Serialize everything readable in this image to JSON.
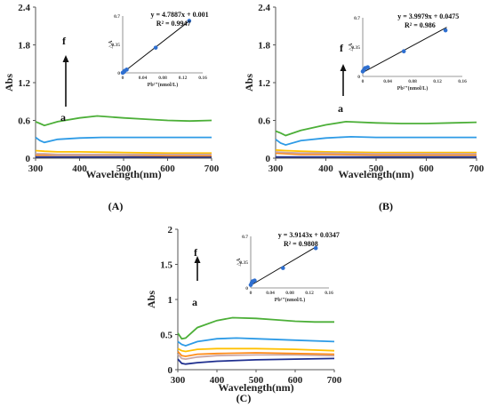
{
  "chart_data": [
    {
      "type": "line",
      "caption": "(A)",
      "xlabel": "Wavelength(nm)",
      "ylabel": "Abs",
      "xlim": [
        300,
        700
      ],
      "ylim": [
        0,
        2.4
      ],
      "xticks": [
        "300",
        "400",
        "500",
        "600",
        "700"
      ],
      "yticks": [
        "0",
        "0.6",
        "1.2",
        "1.8",
        "2.4"
      ],
      "arrow": {
        "from": "a",
        "to": "f"
      },
      "series": [
        {
          "color": "#1f2f8f",
          "x": [
            300,
            320,
            350,
            400,
            500,
            600,
            700
          ],
          "y": [
            0.02,
            0.02,
            0.02,
            0.02,
            0.02,
            0.02,
            0.02
          ]
        },
        {
          "color": "#ff8c1a",
          "x": [
            300,
            320,
            350,
            400,
            500,
            600,
            700
          ],
          "y": [
            0.05,
            0.05,
            0.05,
            0.05,
            0.05,
            0.04,
            0.04
          ]
        },
        {
          "color": "#ffc000",
          "x": [
            300,
            320,
            350,
            400,
            500,
            600,
            700
          ],
          "y": [
            0.12,
            0.11,
            0.1,
            0.1,
            0.09,
            0.08,
            0.08
          ]
        },
        {
          "color": "#c9a7a7",
          "x": [
            300,
            320,
            350,
            400,
            500,
            600,
            700
          ],
          "y": [
            0.07,
            0.07,
            0.06,
            0.06,
            0.06,
            0.06,
            0.06
          ]
        },
        {
          "color": "#2e9be6",
          "x": [
            300,
            310,
            320,
            350,
            400,
            450,
            500,
            600,
            700
          ],
          "y": [
            0.33,
            0.28,
            0.25,
            0.3,
            0.32,
            0.33,
            0.33,
            0.33,
            0.33
          ]
        },
        {
          "color": "#4caf38",
          "x": [
            300,
            310,
            320,
            350,
            400,
            440,
            500,
            550,
            600,
            650,
            700
          ],
          "y": [
            0.58,
            0.55,
            0.52,
            0.58,
            0.64,
            0.67,
            0.64,
            0.62,
            0.6,
            0.59,
            0.6
          ]
        }
      ],
      "inset": {
        "equation": "y = 4.7887x + 0.001",
        "r2": "R² = 0.9947",
        "xlabel": "Pb²⁺(nmol/L)",
        "ylabel": "△A",
        "xlim": [
          0,
          0.16
        ],
        "ylim": [
          0,
          0.7
        ],
        "xticks": [
          "0",
          "0.04",
          "0.08",
          "0.12",
          "0.16"
        ],
        "yticks": [
          "0",
          "0.35",
          "0.7"
        ],
        "points": {
          "x": [
            0.0,
            0.002,
            0.004,
            0.008,
            0.066,
            0.133
          ],
          "y": [
            0.002,
            0.01,
            0.025,
            0.04,
            0.31,
            0.64
          ]
        },
        "fit": {
          "slope": 4.7887,
          "intercept": 0.001
        }
      }
    },
    {
      "type": "line",
      "caption": "(B)",
      "xlabel": "Wavelength(nm)",
      "ylabel": "Abs",
      "xlim": [
        300,
        700
      ],
      "ylim": [
        0,
        2.4
      ],
      "xticks": [
        "300",
        "400",
        "500",
        "600",
        "700"
      ],
      "yticks": [
        "0",
        "0.6",
        "1.2",
        "1.8",
        "2.4"
      ],
      "arrow": {
        "from": "a",
        "to": "f"
      },
      "series": [
        {
          "color": "#1f2f8f",
          "x": [
            300,
            320,
            350,
            400,
            500,
            600,
            700
          ],
          "y": [
            0.02,
            0.02,
            0.02,
            0.02,
            0.02,
            0.02,
            0.02
          ]
        },
        {
          "color": "#ff8c1a",
          "x": [
            300,
            320,
            350,
            400,
            500,
            600,
            700
          ],
          "y": [
            0.08,
            0.07,
            0.06,
            0.06,
            0.05,
            0.05,
            0.05
          ]
        },
        {
          "color": "#ffc000",
          "x": [
            300,
            320,
            350,
            400,
            500,
            600,
            700
          ],
          "y": [
            0.13,
            0.12,
            0.11,
            0.1,
            0.09,
            0.09,
            0.09
          ]
        },
        {
          "color": "#c9a7a7",
          "x": [
            300,
            320,
            350,
            400,
            500,
            600,
            700
          ],
          "y": [
            0.1,
            0.09,
            0.08,
            0.08,
            0.07,
            0.07,
            0.07
          ]
        },
        {
          "color": "#2e9be6",
          "x": [
            300,
            310,
            320,
            350,
            400,
            450,
            500,
            600,
            700
          ],
          "y": [
            0.3,
            0.24,
            0.21,
            0.28,
            0.32,
            0.34,
            0.33,
            0.33,
            0.33
          ]
        },
        {
          "color": "#4caf38",
          "x": [
            300,
            310,
            320,
            350,
            400,
            440,
            500,
            550,
            600,
            650,
            700
          ],
          "y": [
            0.43,
            0.4,
            0.36,
            0.44,
            0.53,
            0.58,
            0.56,
            0.55,
            0.55,
            0.56,
            0.57
          ]
        }
      ],
      "inset": {
        "equation": "y = 3.9979x + 0.0475",
        "r2": "R² = 0.986",
        "xlabel": "Pb²⁺(nmol/L)",
        "ylabel": "△A",
        "xlim": [
          0,
          0.16
        ],
        "ylim": [
          0,
          0.7
        ],
        "xticks": [
          "0",
          "0.04",
          "0.08",
          "0.12",
          "0.16"
        ],
        "yticks": [
          "0",
          "0.35",
          "0.7"
        ],
        "points": {
          "x": [
            0.0,
            0.002,
            0.004,
            0.008,
            0.066,
            0.133
          ],
          "y": [
            0.06,
            0.08,
            0.1,
            0.11,
            0.3,
            0.55
          ]
        },
        "fit": {
          "slope": 3.9979,
          "intercept": 0.0475
        }
      }
    },
    {
      "type": "line",
      "caption": "(C)",
      "xlabel": "Wavelength(nm)",
      "ylabel": "Abs",
      "xlim": [
        300,
        700
      ],
      "ylim": [
        0,
        2
      ],
      "xticks": [
        "300",
        "400",
        "500",
        "600",
        "700"
      ],
      "yticks": [
        "0",
        "0.5",
        "1",
        "1.5",
        "2"
      ],
      "arrow": {
        "from": "a",
        "to": "f"
      },
      "series": [
        {
          "color": "#1f2f8f",
          "x": [
            300,
            310,
            320,
            350,
            400,
            500,
            600,
            700
          ],
          "y": [
            0.15,
            0.09,
            0.08,
            0.1,
            0.12,
            0.14,
            0.15,
            0.16
          ]
        },
        {
          "color": "#c9a7a7",
          "x": [
            300,
            310,
            320,
            350,
            400,
            500,
            600,
            700
          ],
          "y": [
            0.22,
            0.16,
            0.15,
            0.18,
            0.2,
            0.21,
            0.21,
            0.2
          ]
        },
        {
          "color": "#ff8c1a",
          "x": [
            300,
            310,
            320,
            350,
            400,
            500,
            600,
            700
          ],
          "y": [
            0.26,
            0.2,
            0.19,
            0.22,
            0.23,
            0.24,
            0.23,
            0.22
          ]
        },
        {
          "color": "#ffc000",
          "x": [
            300,
            310,
            320,
            350,
            400,
            500,
            600,
            700
          ],
          "y": [
            0.3,
            0.27,
            0.26,
            0.29,
            0.3,
            0.3,
            0.29,
            0.27
          ]
        },
        {
          "color": "#2e9be6",
          "x": [
            300,
            310,
            320,
            350,
            400,
            450,
            500,
            600,
            700
          ],
          "y": [
            0.4,
            0.36,
            0.34,
            0.4,
            0.44,
            0.45,
            0.44,
            0.42,
            0.4
          ]
        },
        {
          "color": "#4caf38",
          "x": [
            300,
            310,
            320,
            350,
            400,
            440,
            500,
            550,
            600,
            650,
            700
          ],
          "y": [
            0.52,
            0.44,
            0.45,
            0.6,
            0.7,
            0.74,
            0.73,
            0.71,
            0.69,
            0.68,
            0.68
          ]
        }
      ],
      "inset": {
        "equation": "y = 3.9143x + 0.0347",
        "r2": "R² = 0.9808",
        "xlabel": "Pb²⁺(nmol/L)",
        "ylabel": "△A",
        "xlim": [
          0,
          0.16
        ],
        "ylim": [
          0,
          0.7
        ],
        "xticks": [
          "0",
          "0.04",
          "0.08",
          "0.12",
          "0.16"
        ],
        "yticks": [
          "0",
          "0.35",
          "0.7"
        ],
        "points": {
          "x": [
            0.0,
            0.002,
            0.004,
            0.008,
            0.066,
            0.133
          ],
          "y": [
            0.04,
            0.07,
            0.09,
            0.1,
            0.27,
            0.54
          ]
        },
        "fit": {
          "slope": 3.9143,
          "intercept": 0.0347
        }
      }
    }
  ]
}
